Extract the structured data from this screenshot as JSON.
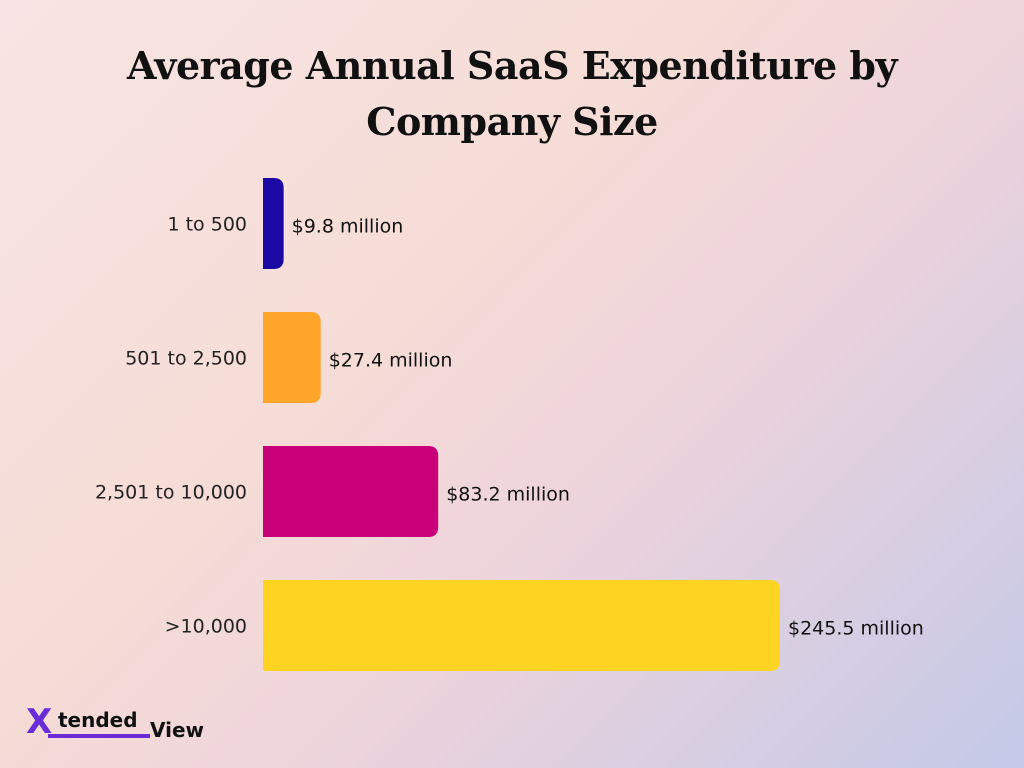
{
  "chart_data": {
    "type": "bar",
    "orientation": "horizontal",
    "title_lines": [
      "Average Annual SaaS Expenditure by",
      "Company Size"
    ],
    "categories": [
      "1 to 500",
      "501 to 2,500",
      "2,501 to 10,000",
      ">10,000"
    ],
    "values": [
      9.8,
      27.4,
      83.2,
      245.5
    ],
    "value_labels": [
      "$9.8 million",
      "$27.4 million",
      "$83.2 million",
      "$245.5 million"
    ],
    "colors": [
      "#1c0aa6",
      "#ffa62a",
      "#c9007a",
      "#ffd321"
    ],
    "xlim": [
      0,
      245.5
    ],
    "grid": false,
    "legend": "none"
  },
  "logo": {
    "mark": "X",
    "part1": "tended",
    "part2": "View",
    "accent": "#6a2bd9"
  }
}
